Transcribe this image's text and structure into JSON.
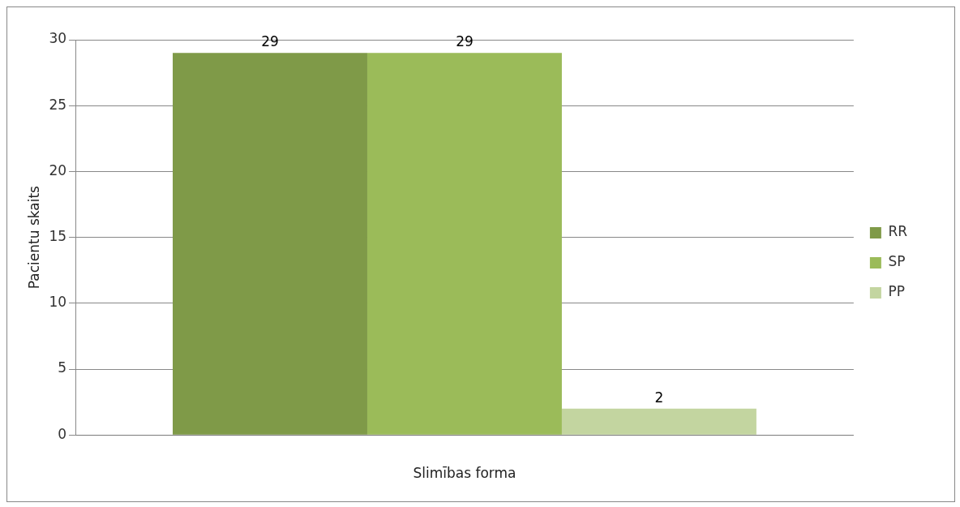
{
  "chart_data": {
    "type": "bar",
    "xlabel": "Slimības forma",
    "ylabel": "Pacientu skaits",
    "categories": [
      null
    ],
    "series": [
      {
        "name": "RR",
        "color": "#7f9a48",
        "values": [
          29
        ]
      },
      {
        "name": "SP",
        "color": "#9bbb59",
        "values": [
          29
        ]
      },
      {
        "name": "PP",
        "color": "#c3d5a0",
        "values": [
          2
        ]
      }
    ],
    "ylim": [
      0,
      30
    ],
    "yticks": [
      0,
      5,
      10,
      15,
      20,
      25,
      30
    ],
    "grid": "y",
    "legend": "right",
    "data_labels": true
  }
}
